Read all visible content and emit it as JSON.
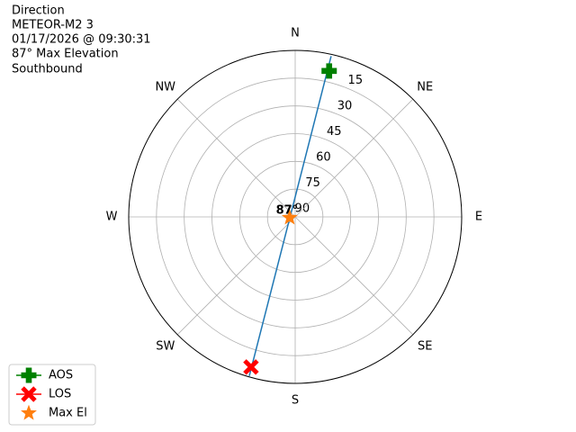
{
  "chart_data": {
    "type": "polar",
    "title": "Direction",
    "subtitle_lines": [
      "METEOR-M2 3",
      "01/17/2026 @ 09:30:31",
      "87° Max Elevation",
      "Southbound"
    ],
    "categories": [
      "N",
      "NE",
      "E",
      "SE",
      "S",
      "SW",
      "W",
      "NW"
    ],
    "rlim": [
      90,
      0
    ],
    "rticks": [
      15,
      30,
      45,
      60,
      75,
      90
    ],
    "grid": true,
    "track": {
      "color": "#1f77b4",
      "x": [
        12.6,
        10.9,
        280.3,
        197.8,
        196.1
      ],
      "values": [
        1,
        45.4,
        87.3,
        45,
        0.5
      ]
    },
    "series": [
      {
        "name": "AOS",
        "color": "#008000",
        "marker": "plus",
        "x": [
          13.1
        ],
        "values": [
          9
        ]
      },
      {
        "name": "LOS",
        "color": "#ff0000",
        "marker": "x",
        "x": [
          196.4
        ],
        "values": [
          5.4
        ]
      },
      {
        "name": "Max El",
        "color": "#ff7f0e",
        "marker": "star",
        "x": [
          262
        ],
        "values": [
          87
        ]
      }
    ],
    "annotations": [
      {
        "text": "87°"
      }
    ],
    "legend": "lower left"
  }
}
